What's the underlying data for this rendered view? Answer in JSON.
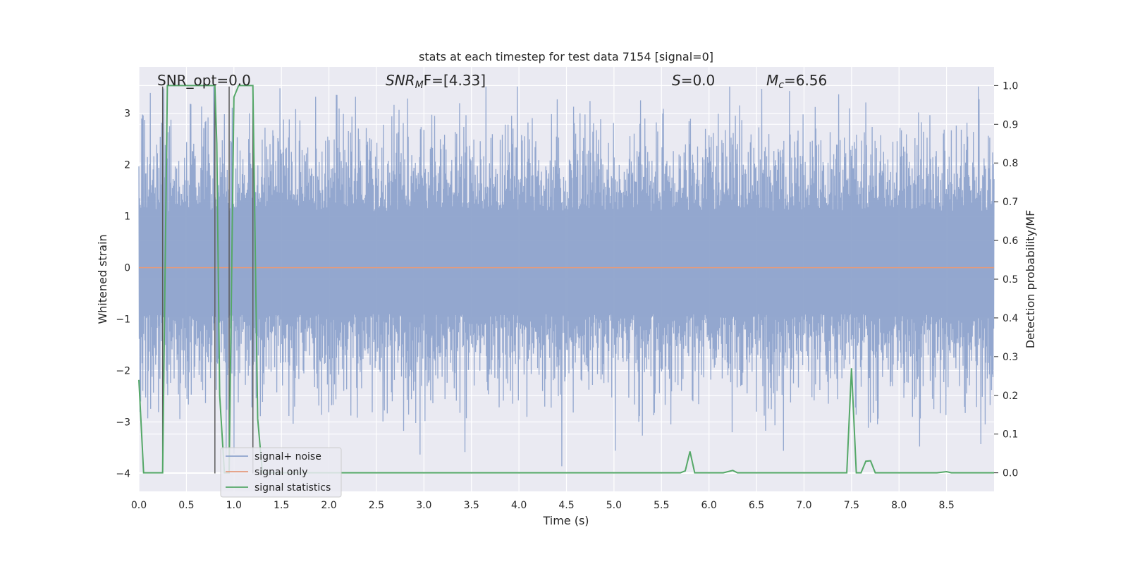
{
  "chart_data": {
    "type": "line",
    "title": "stats at each timestep for test data 7154 [signal=0]",
    "xlabel": "Time (s)",
    "ylabel": "Whitened strain",
    "y2label": "Detection probability/MF",
    "xlim": [
      0.0,
      9.0
    ],
    "ylim": [
      -4.35,
      3.9
    ],
    "y2lim": [
      -0.048,
      1.048
    ],
    "xticks": [
      "0.0",
      "0.5",
      "1.0",
      "1.5",
      "2.0",
      "2.5",
      "3.0",
      "3.5",
      "4.0",
      "4.5",
      "5.0",
      "5.5",
      "6.0",
      "6.5",
      "7.0",
      "7.5",
      "8.0",
      "8.5"
    ],
    "yticks": [
      "3",
      "2",
      "1",
      "0",
      "−1",
      "−2",
      "−3",
      "−4"
    ],
    "y2ticks": [
      "1.0",
      "0.9",
      "0.8",
      "0.7",
      "0.6",
      "0.5",
      "0.4",
      "0.3",
      "0.2",
      "0.1",
      "0.0"
    ],
    "grid": true,
    "legend_position": "lower-left",
    "annotations": {
      "snr_opt": "SNR_opt=0.0",
      "snr_mf_main": "SNR",
      "snr_mf_sub": "M",
      "snr_mf_rest": "F=[4.33]",
      "s_main": "S",
      "s_rest": "=0.0",
      "mc_main": "M",
      "mc_sub": "c",
      "mc_rest": "=6.56"
    },
    "series": [
      {
        "name": "signal+ noise",
        "color": "#8ea3cc",
        "style": "noise",
        "amplitude_envelope": [
          2.0,
          3.5
        ],
        "y_range": [
          -4.05,
          3.52
        ]
      },
      {
        "name": "signal only",
        "color": "#e49a7c",
        "x": [
          0.0,
          9.0
        ],
        "y": [
          0.0,
          0.0
        ]
      },
      {
        "name": "signal statistics",
        "color": "#55a868",
        "axis": "right",
        "x": [
          0.0,
          0.05,
          0.1,
          0.15,
          0.2,
          0.25,
          0.3,
          0.35,
          0.4,
          0.45,
          0.5,
          0.55,
          0.6,
          0.65,
          0.7,
          0.75,
          0.8,
          0.82,
          0.85,
          0.9,
          0.95,
          1.0,
          1.05,
          1.1,
          1.15,
          1.2,
          1.25,
          1.3,
          1.35,
          1.4,
          5.65,
          5.7,
          5.75,
          5.8,
          5.85,
          5.9,
          6.0,
          6.15,
          6.25,
          6.3,
          6.35,
          7.35,
          7.4,
          7.45,
          7.5,
          7.55,
          7.6,
          7.65,
          7.7,
          7.75,
          7.8,
          7.85,
          8.4,
          8.5,
          8.55,
          9.0
        ],
        "y": [
          0.24,
          0.0,
          0.0,
          0.0,
          0.0,
          0.0,
          1.0,
          1.0,
          1.0,
          1.0,
          1.0,
          1.0,
          1.0,
          1.0,
          1.0,
          1.0,
          1.0,
          0.85,
          0.2,
          0.0,
          0.0,
          0.97,
          1.0,
          1.0,
          1.0,
          1.0,
          0.14,
          0.0,
          0.0,
          0.0,
          0.0,
          0.0,
          0.005,
          0.055,
          0.0,
          0.0,
          0.0,
          0.0,
          0.006,
          0.0,
          0.0,
          0.0,
          0.0,
          0.0,
          0.27,
          0.0,
          0.0,
          0.03,
          0.031,
          0.0,
          0.0,
          0.0,
          0.0,
          0.003,
          0.0,
          0.0
        ]
      }
    ],
    "markers": {
      "color": "#5b5b5b",
      "x": [
        0.25,
        0.8,
        0.95,
        1.2
      ]
    }
  }
}
